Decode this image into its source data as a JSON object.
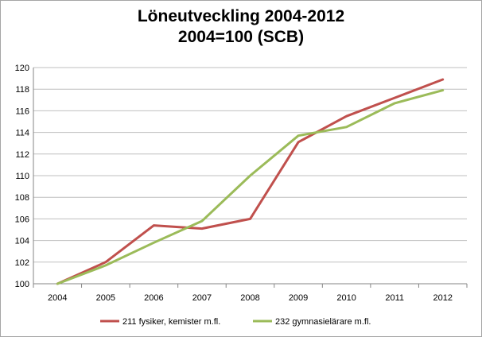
{
  "chart_data": {
    "type": "line",
    "title": "Löneutveckling 2004-2012",
    "subtitle": "2004=100 (SCB)",
    "xlabel": "",
    "ylabel": "",
    "x": [
      "2004",
      "2005",
      "2006",
      "2007",
      "2008",
      "2009",
      "2010",
      "2011",
      "2012"
    ],
    "ylim": [
      100,
      120
    ],
    "yticks": [
      100,
      102,
      104,
      106,
      108,
      110,
      112,
      114,
      116,
      118,
      120
    ],
    "grid": true,
    "legend_position": "bottom",
    "series": [
      {
        "name": "211 fysiker, kemister m.fl.",
        "color": "#c0504d",
        "values": [
          100,
          102.0,
          105.4,
          105.1,
          106.0,
          113.1,
          115.5,
          117.2,
          118.9
        ]
      },
      {
        "name": "232 gymnasielärare m.fl.",
        "color": "#9bbb59",
        "values": [
          100,
          101.7,
          103.8,
          105.8,
          110.0,
          113.7,
          114.5,
          116.7,
          117.9
        ]
      }
    ]
  }
}
